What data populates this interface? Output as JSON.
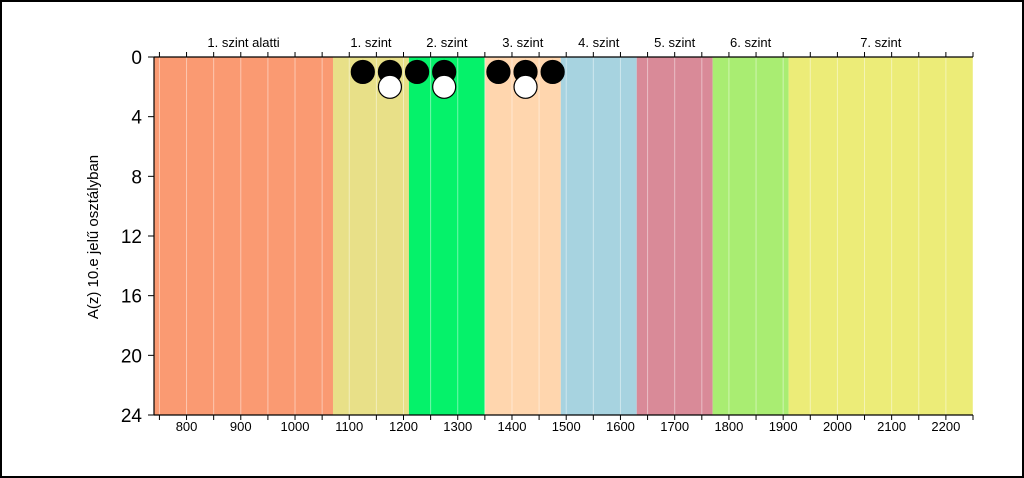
{
  "chart_data": {
    "type": "scatter",
    "title": "",
    "xlabel": "",
    "ylabel": "A(z) 10.e jelű osztályban",
    "xlim": [
      740,
      2250
    ],
    "ylim": [
      0,
      24
    ],
    "y_inverted": true,
    "x_ticks": [
      "800",
      "900",
      "1000",
      "1100",
      "1200",
      "1300",
      "1400",
      "1500",
      "1600",
      "1700",
      "1800",
      "1900",
      "2000",
      "2100",
      "2200"
    ],
    "y_ticks": [
      "0",
      "4",
      "8",
      "12",
      "16",
      "20",
      "24"
    ],
    "bands": [
      {
        "label": "1. szint alatti",
        "from": 740,
        "to": 1070,
        "color": "#fa9a72"
      },
      {
        "label": "1. szint",
        "from": 1070,
        "to": 1210,
        "color": "#e8e088"
      },
      {
        "label": "2. szint",
        "from": 1210,
        "to": 1350,
        "color": "#05f26a"
      },
      {
        "label": "3. szint",
        "from": 1350,
        "to": 1490,
        "color": "#ffd6ae"
      },
      {
        "label": "4. szint",
        "from": 1490,
        "to": 1630,
        "color": "#a7d3e0"
      },
      {
        "label": "5. szint",
        "from": 1630,
        "to": 1770,
        "color": "#d98a98"
      },
      {
        "label": "6. szint",
        "from": 1770,
        "to": 1910,
        "color": "#a9ed72"
      },
      {
        "label": "7. szint",
        "from": 1910,
        "to": 2250,
        "color": "#ecec78"
      }
    ],
    "series": [
      {
        "marker": "filled",
        "color": "#000000",
        "points": [
          [
            1125,
            1
          ],
          [
            1175,
            1
          ],
          [
            1225,
            1
          ],
          [
            1275,
            1
          ],
          [
            1375,
            1
          ],
          [
            1425,
            1
          ],
          [
            1475,
            1
          ]
        ]
      },
      {
        "marker": "open",
        "color": "#ffffff",
        "points": [
          [
            1175,
            2
          ],
          [
            1275,
            2
          ],
          [
            1425,
            2
          ]
        ]
      }
    ]
  }
}
